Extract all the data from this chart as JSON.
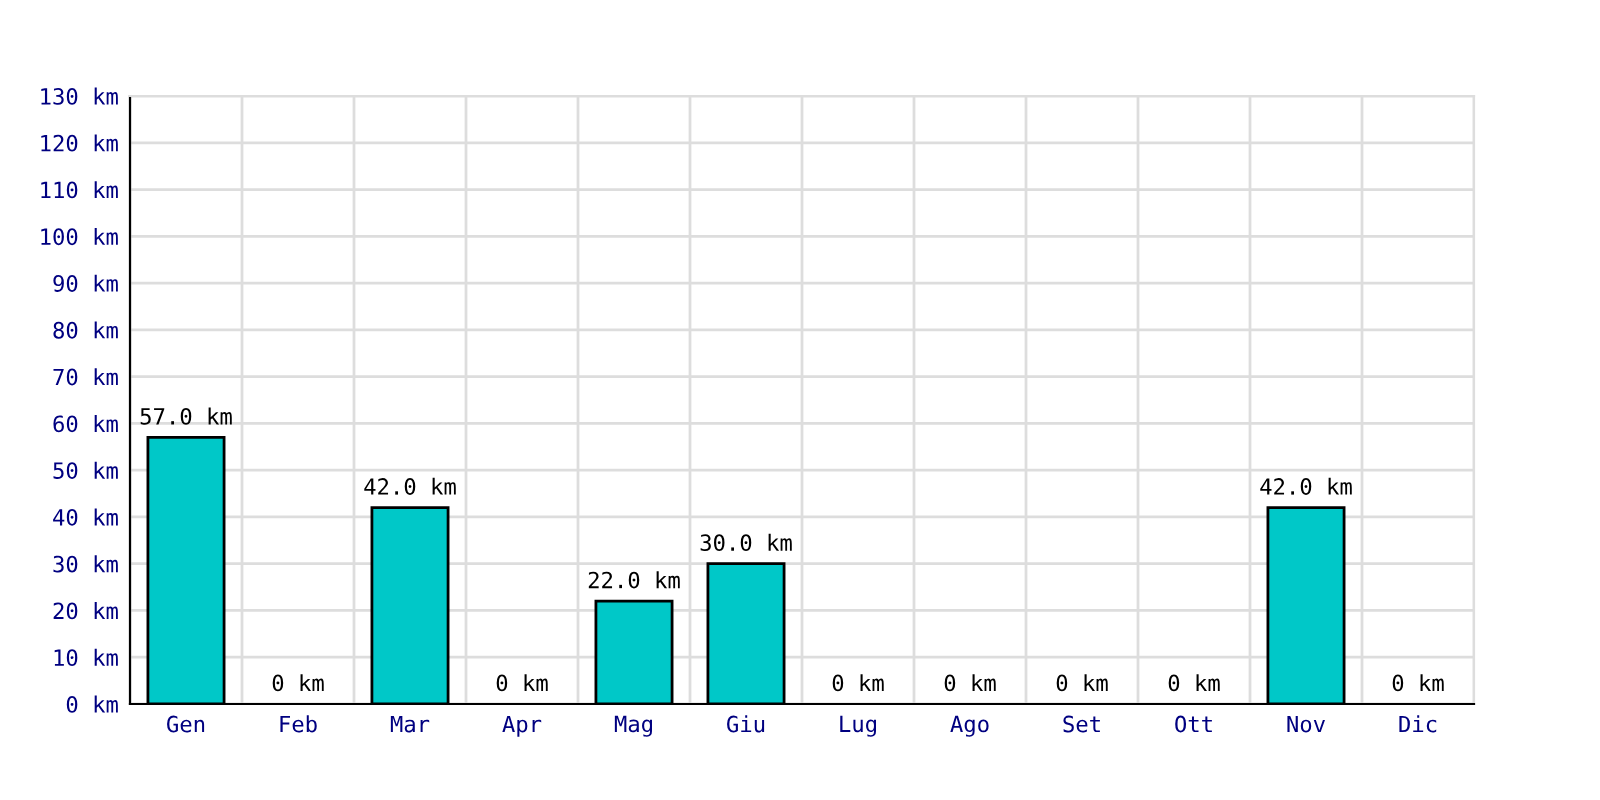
{
  "chart_data": {
    "type": "bar",
    "categories": [
      "Gen",
      "Feb",
      "Mar",
      "Apr",
      "Mag",
      "Giu",
      "Lug",
      "Ago",
      "Set",
      "Ott",
      "Nov",
      "Dic"
    ],
    "values": [
      57,
      0,
      42,
      0,
      22,
      30,
      0,
      0,
      0,
      0,
      42,
      0
    ],
    "value_labels": [
      "57.0 km",
      "0 km",
      "42.0 km",
      "0 km",
      "22.0 km",
      "30.0 km",
      "0 km",
      "0 km",
      "0 km",
      "0 km",
      "42.0 km",
      "0 km"
    ],
    "color": "#00c8c8",
    "ylim": [
      0,
      130
    ],
    "yticks": [
      {
        "value": 0,
        "label": "0 km"
      },
      {
        "value": 10,
        "label": "10 km"
      },
      {
        "value": 20,
        "label": "20 km"
      },
      {
        "value": 30,
        "label": "30 km"
      },
      {
        "value": 40,
        "label": "40 km"
      },
      {
        "value": 50,
        "label": "50 km"
      },
      {
        "value": 60,
        "label": "60 km"
      },
      {
        "value": 70,
        "label": "70 km"
      },
      {
        "value": 80,
        "label": "80 km"
      },
      {
        "value": 90,
        "label": "90 km"
      },
      {
        "value": 100,
        "label": "100 km"
      },
      {
        "value": 110,
        "label": "110 km"
      },
      {
        "value": 120,
        "label": "120 km"
      },
      {
        "value": 130,
        "label": "130 km"
      }
    ],
    "grid": true
  }
}
